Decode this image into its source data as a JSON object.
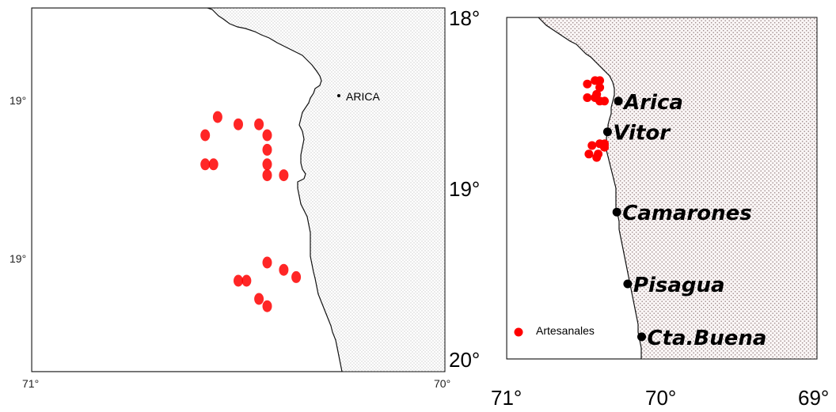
{
  "left_map": {
    "town_label": "ARICA",
    "y_ticks": [
      "19°",
      "19°"
    ],
    "x_ticks": [
      "71°",
      "70°"
    ],
    "colors": {
      "marker": "#ff0000",
      "land": "#ffffff",
      "sea_dots": "#b8b8b8"
    },
    "markers": [
      {
        "lon": 70.55,
        "lat": 18.3
      },
      {
        "lon": 70.5,
        "lat": 18.32
      },
      {
        "lon": 70.45,
        "lat": 18.32
      },
      {
        "lon": 70.43,
        "lat": 18.35
      },
      {
        "lon": 70.43,
        "lat": 18.39
      },
      {
        "lon": 70.43,
        "lat": 18.43
      },
      {
        "lon": 70.58,
        "lat": 18.35
      },
      {
        "lon": 70.58,
        "lat": 18.43
      },
      {
        "lon": 70.56,
        "lat": 18.43
      },
      {
        "lon": 70.43,
        "lat": 18.46
      },
      {
        "lon": 70.39,
        "lat": 18.46
      },
      {
        "lon": 70.43,
        "lat": 18.7
      },
      {
        "lon": 70.39,
        "lat": 18.72
      },
      {
        "lon": 70.48,
        "lat": 18.75
      },
      {
        "lon": 70.5,
        "lat": 18.75
      },
      {
        "lon": 70.45,
        "lat": 18.8
      },
      {
        "lon": 70.43,
        "lat": 18.82
      },
      {
        "lon": 70.36,
        "lat": 18.74
      }
    ]
  },
  "right_map": {
    "y_ticks": [
      "18°",
      "19°",
      "20°"
    ],
    "x_ticks": [
      "71°",
      "70°",
      "69°"
    ],
    "legend": {
      "label": "Artesanales"
    },
    "colors": {
      "marker": "#ff0000",
      "town": "#000000",
      "sea_hatch": "#c8b4b4"
    },
    "towns": [
      {
        "name": "Arica",
        "lon": 70.28,
        "lat": 18.49
      },
      {
        "name": "Vitor",
        "lon": 70.35,
        "lat": 18.67
      },
      {
        "name": "Camarones",
        "lon": 70.29,
        "lat": 19.14
      },
      {
        "name": "Pisagua",
        "lon": 70.22,
        "lat": 19.56
      },
      {
        "name": "Cta.Buena",
        "lon": 70.13,
        "lat": 19.87
      }
    ],
    "markers": [
      {
        "lon": 70.48,
        "lat": 18.39
      },
      {
        "lon": 70.43,
        "lat": 18.37
      },
      {
        "lon": 70.4,
        "lat": 18.37
      },
      {
        "lon": 70.4,
        "lat": 18.41
      },
      {
        "lon": 70.42,
        "lat": 18.45
      },
      {
        "lon": 70.4,
        "lat": 18.49
      },
      {
        "lon": 70.37,
        "lat": 18.49
      },
      {
        "lon": 70.48,
        "lat": 18.47
      },
      {
        "lon": 70.43,
        "lat": 18.47
      },
      {
        "lon": 70.45,
        "lat": 18.75
      },
      {
        "lon": 70.4,
        "lat": 18.74
      },
      {
        "lon": 70.37,
        "lat": 18.74
      },
      {
        "lon": 70.37,
        "lat": 18.76
      },
      {
        "lon": 70.47,
        "lat": 18.8
      },
      {
        "lon": 70.42,
        "lat": 18.82
      },
      {
        "lon": 70.41,
        "lat": 18.8
      }
    ]
  }
}
